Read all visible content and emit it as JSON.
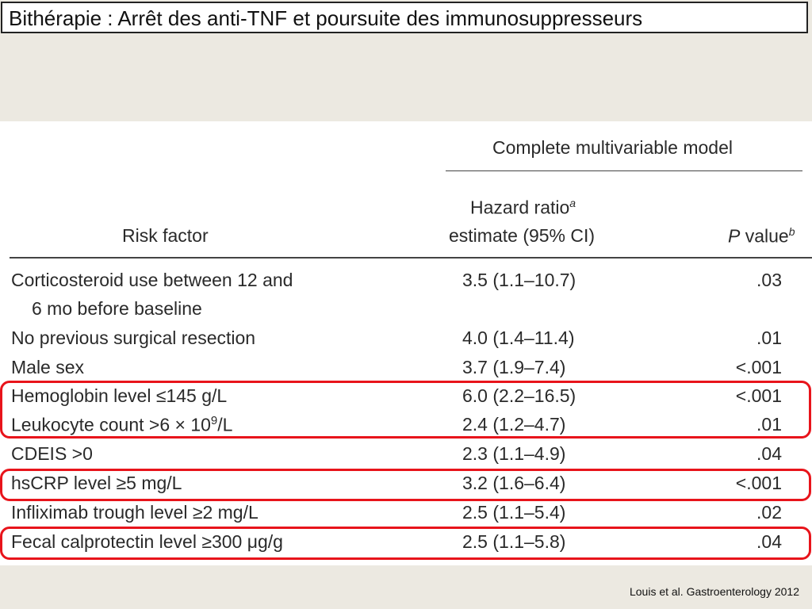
{
  "slide": {
    "title": "Bithérapie : Arrêt des anti-TNF et poursuite des immunosuppresseurs",
    "citation": "Louis et al. Gastroenterology 2012"
  },
  "table": {
    "group_header": "Complete multivariable model",
    "col_risk": "Risk factor",
    "col_hr_line1": "Hazard ratio",
    "col_hr_sup": "a",
    "col_hr_line2": "estimate (95% CI)",
    "col_p_italic": "P",
    "col_p_rest": " value",
    "col_p_sup": "b",
    "rows": [
      {
        "label": "Corticosteroid use between 12 and",
        "label2": "6 mo before baseline",
        "hr": "3.5 (1.1–10.7)",
        "p": ".03"
      },
      {
        "label": "No previous surgical resection",
        "hr": "4.0 (1.4–11.4)",
        "p": ".01"
      },
      {
        "label": "Male sex",
        "hr": "3.7 (1.9–7.4)",
        "p": "<.001"
      },
      {
        "label": "Hemoglobin level ≤145 g/L",
        "hr": "6.0 (2.2–16.5)",
        "p": "<.001"
      },
      {
        "label_pre": "Leukocyte count >6 × 10",
        "label_sup": "9",
        "label_post": "/L",
        "hr": "2.4 (1.2–4.7)",
        "p": ".01"
      },
      {
        "label": "CDEIS >0",
        "hr": "2.3 (1.1–4.9)",
        "p": ".04"
      },
      {
        "label": "hsCRP level ≥5 mg/L",
        "hr": "3.2 (1.6–6.4)",
        "p": "<.001"
      },
      {
        "label": "Infliximab trough level ≥2 mg/L",
        "hr": "2.5 (1.1–5.4)",
        "p": ".02"
      },
      {
        "label": "Fecal calprotectin level ≥300 μg/g",
        "hr": "2.5 (1.1–5.8)",
        "p": ".04"
      }
    ]
  },
  "colors": {
    "highlight": "#e8141b",
    "background": "#ece9e1",
    "panel": "#ffffff"
  }
}
